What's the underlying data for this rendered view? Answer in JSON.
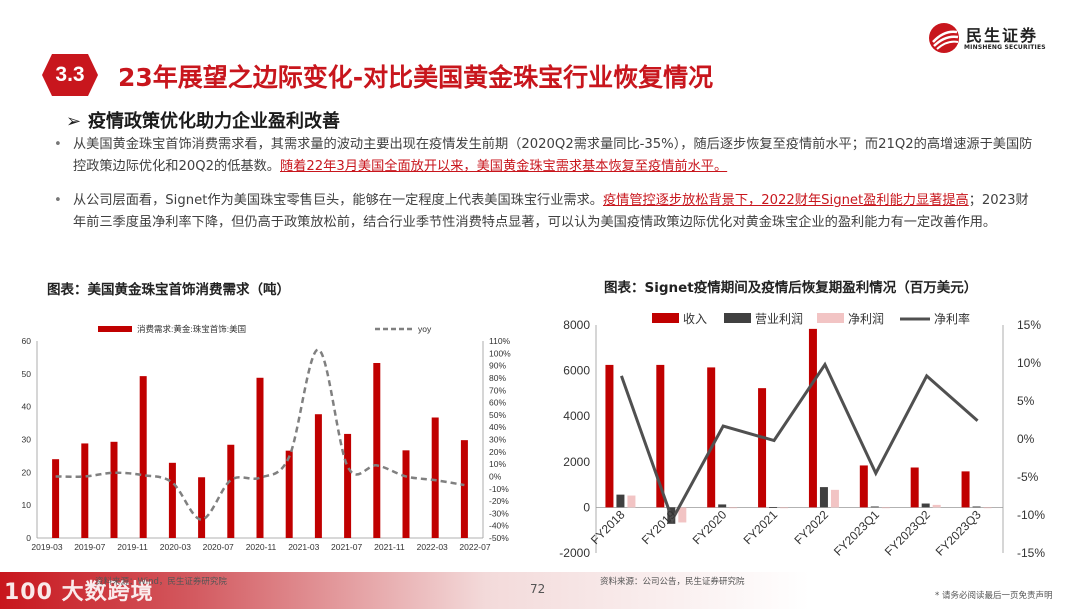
{
  "brand": {
    "name_cn": "民生证券",
    "name_en": "MINSHENG SECURITIES",
    "color": "#c8161d"
  },
  "section": {
    "number": "3.3",
    "title": "23年展望之边际变化-对比美国黄金珠宝行业恢复情况"
  },
  "subheading": {
    "arrow": "➢",
    "text": "疫情政策优化助力企业盈利改善"
  },
  "bullets": [
    {
      "plain": "从美国黄金珠宝首饰消费需求看，其需求量的波动主要出现在疫情发生前期（2020Q2需求量同比-35%），随后逐步恢复至疫情前水平；而21Q2的高增速源于美国防控政策边际优化和20Q2的低基数。",
      "highlight": "随着22年3月美国全面放开以来，美国黄金珠宝需求基本恢复至疫情前水平。",
      "tail": ""
    },
    {
      "plain": "从公司层面看，Signet作为美国珠宝零售巨头，能够在一定程度上代表美国珠宝行业需求。",
      "highlight": "疫情管控逐步放松背景下，2022财年Signet盈利能力显著提高",
      "tail": "；2023财年前三季度虽净利率下降，但仍高于政策放松前，结合行业季节性消费特点显著，可以认为美国疫情政策边际优化对黄金珠宝企业的盈利能力有一定改善作用。"
    }
  ],
  "chart_data": [
    {
      "type": "bar",
      "figure_title": "图表：美国黄金珠宝首饰消费需求（吨）",
      "legend": [
        "消费需求:黄金:珠宝首饰:美国",
        "yoy"
      ],
      "colors": {
        "bar": "#c00000",
        "line": "#808080"
      },
      "x_tick_labels": [
        "2019-03",
        "2019-07",
        "2019-11",
        "2020-03",
        "2020-07",
        "2020-11",
        "2021-03",
        "2021-07",
        "2021-11",
        "2022-03",
        "2022-07"
      ],
      "categories": [
        "2019Q1",
        "2019Q2",
        "2019Q3",
        "2019Q4",
        "2020Q1",
        "2020Q2",
        "2020Q3",
        "2020Q4",
        "2021Q1",
        "2021Q2",
        "2021Q3",
        "2021Q4",
        "2022Q1",
        "2022Q2",
        "2022Q3"
      ],
      "series": [
        {
          "name": "消费需求:黄金:珠宝首饰:美国",
          "axis": "left",
          "values": [
            24,
            28.8,
            29.3,
            49.3,
            22.9,
            18.5,
            28.4,
            48.8,
            26.6,
            37.7,
            31.7,
            53.3,
            26.7,
            36.7,
            29.8
          ]
        },
        {
          "name": "yoy",
          "axis": "right",
          "values": [
            0.0,
            0.0,
            0.03,
            0.01,
            -0.05,
            -0.35,
            -0.03,
            -0.01,
            0.16,
            1.03,
            0.08,
            0.09,
            0.0,
            -0.03,
            -0.07
          ]
        }
      ],
      "y_left": {
        "ticks": [
          0,
          10,
          20,
          30,
          40,
          50,
          60
        ],
        "lim": [
          0,
          60
        ]
      },
      "y_right": {
        "ticks": [
          "110%",
          "100%",
          "90%",
          "80%",
          "70%",
          "60%",
          "50%",
          "40%",
          "30%",
          "20%",
          "10%",
          "0%",
          "-10%",
          "-20%",
          "-30%",
          "-40%",
          "-50%"
        ],
        "lim": [
          -0.5,
          1.1
        ]
      }
    },
    {
      "type": "bar",
      "figure_title": "图表：Signet疫情期间及疫情后恢复期盈利情况（百万美元）",
      "legend": [
        "收入",
        "营业利润",
        "净利润",
        "净利率"
      ],
      "colors": {
        "收入": "#c00000",
        "营业利润": "#404040",
        "净利润": "#f2c4c4",
        "净利率": "#505050"
      },
      "categories": [
        "FY2018",
        "FY2019",
        "FY2020",
        "FY2021",
        "FY2022",
        "FY2023Q1",
        "FY2023Q2",
        "FY2023Q3"
      ],
      "series": [
        {
          "name": "收入",
          "axis": "left",
          "values": [
            6250,
            6250,
            6140,
            5230,
            7830,
            1840,
            1750,
            1580
          ]
        },
        {
          "name": "营业利润",
          "axis": "left",
          "values": [
            560,
            -720,
            130,
            10,
            890,
            40,
            170,
            40
          ]
        },
        {
          "name": "净利润",
          "axis": "left",
          "values": [
            520,
            -660,
            -20,
            -30,
            770,
            0,
            110,
            0
          ]
        },
        {
          "name": "净利率",
          "axis": "right",
          "values": [
            0.083,
            -0.106,
            0.017,
            -0.002,
            0.098,
            -0.045,
            0.083,
            0.024
          ]
        }
      ],
      "y_left": {
        "ticks": [
          8000,
          6000,
          4000,
          2000,
          0,
          -2000
        ],
        "tick_labels": [
          "8000",
          "6000",
          "4000",
          "2000",
          "0",
          "-2000"
        ],
        "lim": [
          -2000,
          8000
        ]
      },
      "y_right": {
        "ticks": [
          "15%",
          "10%",
          "5%",
          "0%",
          "-5%",
          "-10%",
          "-15%"
        ],
        "lim": [
          -0.15,
          0.15
        ]
      }
    }
  ],
  "sources": {
    "left": "资料来源：Wind，民生证券研究院",
    "right": "资料来源：公司公告，民生证券研究院"
  },
  "page_number": "72",
  "disclaimer": "* 请务必阅读最后一页免责声明",
  "watermark": "100 大数跨境"
}
